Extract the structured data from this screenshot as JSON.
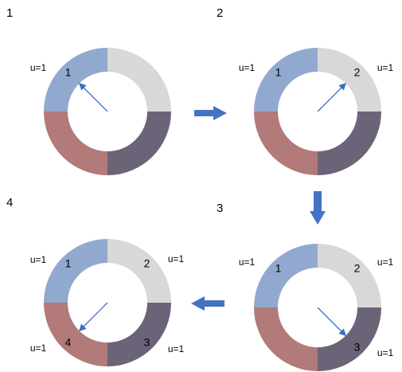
{
  "colors": {
    "segment_1": "#92a9cf",
    "segment_2": "#d8d8d8",
    "segment_3": "#6b6479",
    "segment_4": "#b27a79",
    "needle": "#3e6fbf",
    "transition_arrow": "#4472c4"
  },
  "panels": [
    {
      "step": "1",
      "segment_labels": [
        "1",
        "",
        "",
        ""
      ],
      "u_labels": [
        "u=1",
        "",
        "",
        ""
      ],
      "needle_segment": 1
    },
    {
      "step": "2",
      "segment_labels": [
        "1",
        "2",
        "",
        ""
      ],
      "u_labels": [
        "u=1",
        "u=1",
        "",
        ""
      ],
      "needle_segment": 2
    },
    {
      "step": "3",
      "segment_labels": [
        "1",
        "2",
        "3",
        ""
      ],
      "u_labels": [
        "u=1",
        "u=1",
        "u=1",
        ""
      ],
      "needle_segment": 3
    },
    {
      "step": "4",
      "segment_labels": [
        "1",
        "2",
        "3",
        "4"
      ],
      "u_labels": [
        "u=1",
        "u=1",
        "u=1",
        "u=1"
      ],
      "needle_segment": 4
    }
  ]
}
